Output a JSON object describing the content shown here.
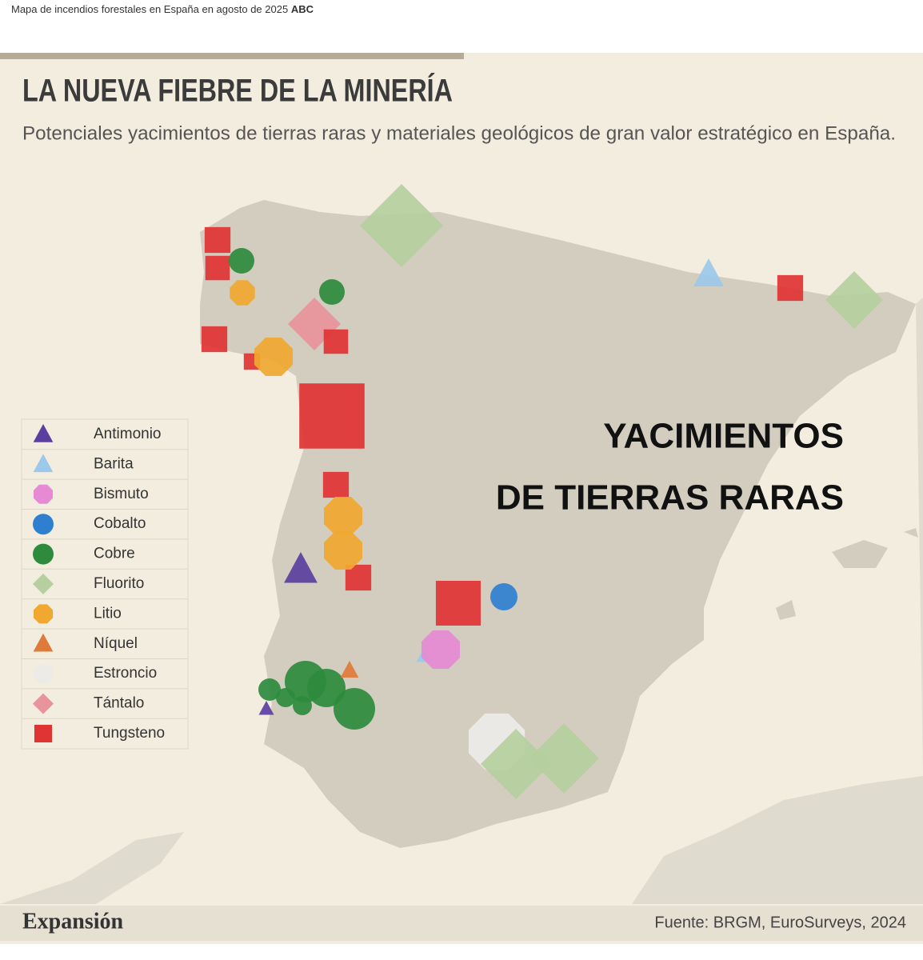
{
  "caption": {
    "text": "Mapa de incendios forestales en España en agosto de 2025",
    "source": "ABC"
  },
  "title": "LA NUEVA FIEBRE DE LA MINERÍA",
  "subtitle": "Potenciales yacimientos de tierras raras y materiales geológicos de gran valor estratégico en España.",
  "legend": {
    "items": [
      {
        "label": "Antimonio",
        "shape": "triangle",
        "color": "#5b3fa0"
      },
      {
        "label": "Barita",
        "shape": "triangle",
        "color": "#9cc9ea"
      },
      {
        "label": "Bismuto",
        "shape": "octagon",
        "color": "#e58ad3"
      },
      {
        "label": "Cobalto",
        "shape": "circle",
        "color": "#2f7fd0"
      },
      {
        "label": "Cobre",
        "shape": "circle",
        "color": "#2e8b3e"
      },
      {
        "label": "Fluorito",
        "shape": "diamond",
        "color": "#b5cf9e"
      },
      {
        "label": "Litio",
        "shape": "octagon",
        "color": "#f0a830"
      },
      {
        "label": "Níquel",
        "shape": "triangle",
        "color": "#e07a3a"
      },
      {
        "label": "Estroncio",
        "shape": "octagon",
        "color": "#ecebe8"
      },
      {
        "label": "Tántalo",
        "shape": "diamond",
        "color": "#e8949c"
      },
      {
        "label": "Tungsteno",
        "shape": "square",
        "color": "#e03434"
      }
    ]
  },
  "overlay": [
    "YACIMIENTOS",
    "DE TIERRAS RARAS"
  ],
  "footer": {
    "brand": "Expansión",
    "source": "Fuente: BRGM, EuroSurveys, 2024"
  }
}
